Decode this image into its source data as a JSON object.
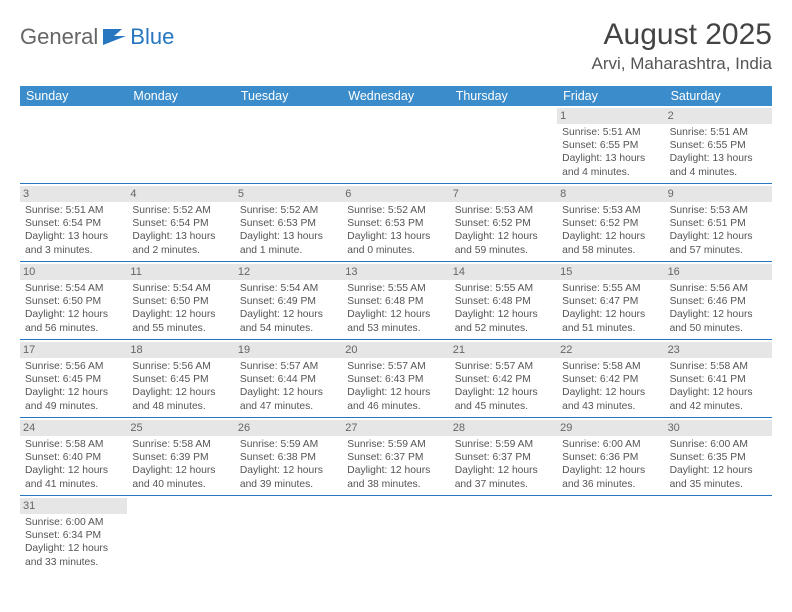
{
  "logo": {
    "part1": "General",
    "part2": "Blue"
  },
  "title": "August 2025",
  "location": "Arvi, Maharashtra, India",
  "header_bg": "#3b8ccb",
  "border_color": "#2676c0",
  "daynum_bg": "#e6e6e6",
  "days": [
    "Sunday",
    "Monday",
    "Tuesday",
    "Wednesday",
    "Thursday",
    "Friday",
    "Saturday"
  ],
  "cells": [
    {
      "n": "",
      "rise": "",
      "set": "",
      "dl": ""
    },
    {
      "n": "",
      "rise": "",
      "set": "",
      "dl": ""
    },
    {
      "n": "",
      "rise": "",
      "set": "",
      "dl": ""
    },
    {
      "n": "",
      "rise": "",
      "set": "",
      "dl": ""
    },
    {
      "n": "",
      "rise": "",
      "set": "",
      "dl": ""
    },
    {
      "n": "1",
      "rise": "Sunrise: 5:51 AM",
      "set": "Sunset: 6:55 PM",
      "dl": "Daylight: 13 hours and 4 minutes."
    },
    {
      "n": "2",
      "rise": "Sunrise: 5:51 AM",
      "set": "Sunset: 6:55 PM",
      "dl": "Daylight: 13 hours and 4 minutes."
    },
    {
      "n": "3",
      "rise": "Sunrise: 5:51 AM",
      "set": "Sunset: 6:54 PM",
      "dl": "Daylight: 13 hours and 3 minutes."
    },
    {
      "n": "4",
      "rise": "Sunrise: 5:52 AM",
      "set": "Sunset: 6:54 PM",
      "dl": "Daylight: 13 hours and 2 minutes."
    },
    {
      "n": "5",
      "rise": "Sunrise: 5:52 AM",
      "set": "Sunset: 6:53 PM",
      "dl": "Daylight: 13 hours and 1 minute."
    },
    {
      "n": "6",
      "rise": "Sunrise: 5:52 AM",
      "set": "Sunset: 6:53 PM",
      "dl": "Daylight: 13 hours and 0 minutes."
    },
    {
      "n": "7",
      "rise": "Sunrise: 5:53 AM",
      "set": "Sunset: 6:52 PM",
      "dl": "Daylight: 12 hours and 59 minutes."
    },
    {
      "n": "8",
      "rise": "Sunrise: 5:53 AM",
      "set": "Sunset: 6:52 PM",
      "dl": "Daylight: 12 hours and 58 minutes."
    },
    {
      "n": "9",
      "rise": "Sunrise: 5:53 AM",
      "set": "Sunset: 6:51 PM",
      "dl": "Daylight: 12 hours and 57 minutes."
    },
    {
      "n": "10",
      "rise": "Sunrise: 5:54 AM",
      "set": "Sunset: 6:50 PM",
      "dl": "Daylight: 12 hours and 56 minutes."
    },
    {
      "n": "11",
      "rise": "Sunrise: 5:54 AM",
      "set": "Sunset: 6:50 PM",
      "dl": "Daylight: 12 hours and 55 minutes."
    },
    {
      "n": "12",
      "rise": "Sunrise: 5:54 AM",
      "set": "Sunset: 6:49 PM",
      "dl": "Daylight: 12 hours and 54 minutes."
    },
    {
      "n": "13",
      "rise": "Sunrise: 5:55 AM",
      "set": "Sunset: 6:48 PM",
      "dl": "Daylight: 12 hours and 53 minutes."
    },
    {
      "n": "14",
      "rise": "Sunrise: 5:55 AM",
      "set": "Sunset: 6:48 PM",
      "dl": "Daylight: 12 hours and 52 minutes."
    },
    {
      "n": "15",
      "rise": "Sunrise: 5:55 AM",
      "set": "Sunset: 6:47 PM",
      "dl": "Daylight: 12 hours and 51 minutes."
    },
    {
      "n": "16",
      "rise": "Sunrise: 5:56 AM",
      "set": "Sunset: 6:46 PM",
      "dl": "Daylight: 12 hours and 50 minutes."
    },
    {
      "n": "17",
      "rise": "Sunrise: 5:56 AM",
      "set": "Sunset: 6:45 PM",
      "dl": "Daylight: 12 hours and 49 minutes."
    },
    {
      "n": "18",
      "rise": "Sunrise: 5:56 AM",
      "set": "Sunset: 6:45 PM",
      "dl": "Daylight: 12 hours and 48 minutes."
    },
    {
      "n": "19",
      "rise": "Sunrise: 5:57 AM",
      "set": "Sunset: 6:44 PM",
      "dl": "Daylight: 12 hours and 47 minutes."
    },
    {
      "n": "20",
      "rise": "Sunrise: 5:57 AM",
      "set": "Sunset: 6:43 PM",
      "dl": "Daylight: 12 hours and 46 minutes."
    },
    {
      "n": "21",
      "rise": "Sunrise: 5:57 AM",
      "set": "Sunset: 6:42 PM",
      "dl": "Daylight: 12 hours and 45 minutes."
    },
    {
      "n": "22",
      "rise": "Sunrise: 5:58 AM",
      "set": "Sunset: 6:42 PM",
      "dl": "Daylight: 12 hours and 43 minutes."
    },
    {
      "n": "23",
      "rise": "Sunrise: 5:58 AM",
      "set": "Sunset: 6:41 PM",
      "dl": "Daylight: 12 hours and 42 minutes."
    },
    {
      "n": "24",
      "rise": "Sunrise: 5:58 AM",
      "set": "Sunset: 6:40 PM",
      "dl": "Daylight: 12 hours and 41 minutes."
    },
    {
      "n": "25",
      "rise": "Sunrise: 5:58 AM",
      "set": "Sunset: 6:39 PM",
      "dl": "Daylight: 12 hours and 40 minutes."
    },
    {
      "n": "26",
      "rise": "Sunrise: 5:59 AM",
      "set": "Sunset: 6:38 PM",
      "dl": "Daylight: 12 hours and 39 minutes."
    },
    {
      "n": "27",
      "rise": "Sunrise: 5:59 AM",
      "set": "Sunset: 6:37 PM",
      "dl": "Daylight: 12 hours and 38 minutes."
    },
    {
      "n": "28",
      "rise": "Sunrise: 5:59 AM",
      "set": "Sunset: 6:37 PM",
      "dl": "Daylight: 12 hours and 37 minutes."
    },
    {
      "n": "29",
      "rise": "Sunrise: 6:00 AM",
      "set": "Sunset: 6:36 PM",
      "dl": "Daylight: 12 hours and 36 minutes."
    },
    {
      "n": "30",
      "rise": "Sunrise: 6:00 AM",
      "set": "Sunset: 6:35 PM",
      "dl": "Daylight: 12 hours and 35 minutes."
    },
    {
      "n": "31",
      "rise": "Sunrise: 6:00 AM",
      "set": "Sunset: 6:34 PM",
      "dl": "Daylight: 12 hours and 33 minutes."
    },
    {
      "n": "",
      "rise": "",
      "set": "",
      "dl": ""
    },
    {
      "n": "",
      "rise": "",
      "set": "",
      "dl": ""
    },
    {
      "n": "",
      "rise": "",
      "set": "",
      "dl": ""
    },
    {
      "n": "",
      "rise": "",
      "set": "",
      "dl": ""
    },
    {
      "n": "",
      "rise": "",
      "set": "",
      "dl": ""
    },
    {
      "n": "",
      "rise": "",
      "set": "",
      "dl": ""
    }
  ]
}
